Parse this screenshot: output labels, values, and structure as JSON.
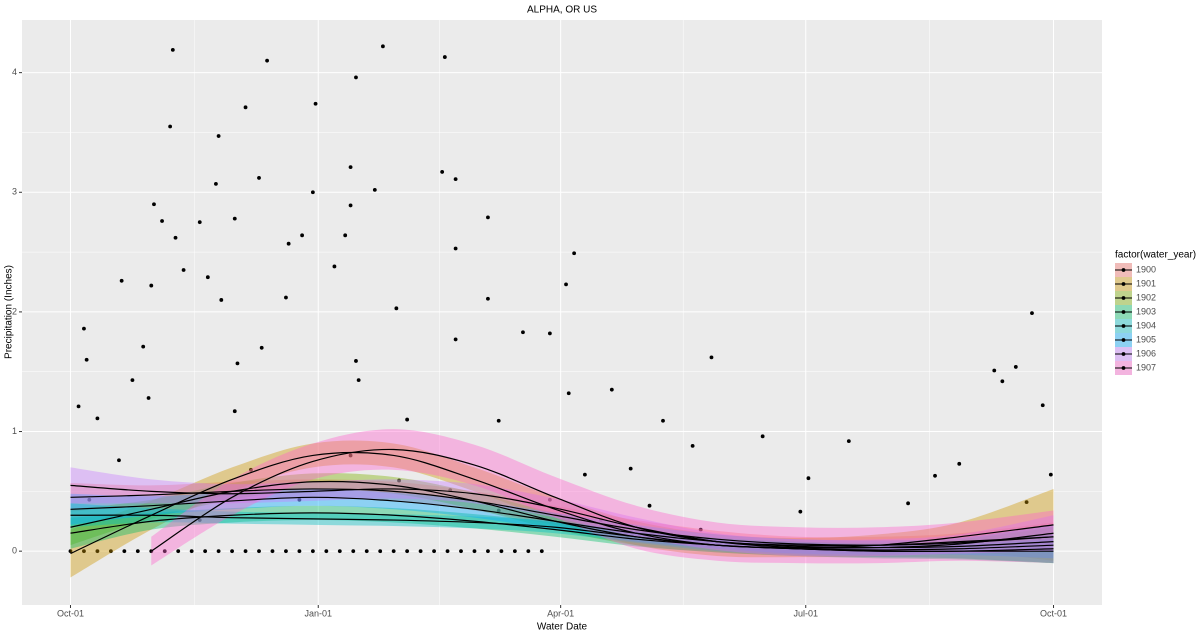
{
  "chart_data": {
    "type": "scatter",
    "title": "ALPHA, OR US",
    "x_label": "Water Date",
    "y_label": "Precipitation (Inches)",
    "legend_title": "factor(water_year)",
    "legend": "right",
    "grid": true,
    "point_color": "#000000",
    "xlim": [
      -18,
      383
    ],
    "xticks": [
      {
        "value": 0,
        "label": "Oct-01"
      },
      {
        "value": 92,
        "label": "Jan-01"
      },
      {
        "value": 182,
        "label": "Apr-01"
      },
      {
        "value": 273,
        "label": "Jul-01"
      },
      {
        "value": 365,
        "label": "Oct-01"
      }
    ],
    "ylim": [
      -0.45,
      4.44
    ],
    "yticks": [
      0,
      1,
      2,
      3,
      4
    ],
    "x": [
      38,
      116,
      73,
      139,
      106,
      91,
      65,
      37,
      55,
      104,
      70,
      138,
      143,
      54,
      90,
      113,
      31,
      104,
      34,
      61,
      48,
      155,
      102,
      39,
      86,
      187,
      143,
      81,
      42,
      184,
      19,
      98,
      30,
      51,
      80,
      155,
      121,
      5,
      56,
      357,
      27,
      6,
      238,
      106,
      351,
      343,
      143,
      168,
      178,
      71,
      62,
      23,
      201,
      346,
      107,
      29,
      3,
      185,
      361,
      10,
      61,
      125,
      289,
      330,
      159,
      220,
      257,
      231,
      208,
      191,
      274,
      321,
      311,
      355,
      271,
      364,
      360,
      18,
      48,
      85,
      122,
      159,
      197,
      234,
      7,
      67,
      104,
      141,
      178,
      215,
      0,
      5,
      10,
      15,
      20,
      25,
      30,
      35,
      40,
      45,
      50,
      55,
      60,
      65,
      70,
      75,
      80,
      85,
      90,
      95,
      100,
      105,
      110,
      115,
      120,
      125,
      130,
      135,
      140,
      145,
      150,
      155,
      160,
      165,
      170,
      175
    ],
    "values": [
      4.19,
      4.22,
      4.1,
      4.13,
      3.96,
      3.74,
      3.71,
      3.55,
      3.47,
      3.21,
      3.12,
      3.17,
      3.11,
      3.07,
      3.0,
      3.02,
      2.9,
      2.89,
      2.76,
      2.78,
      2.75,
      2.79,
      2.64,
      2.62,
      2.64,
      2.49,
      2.53,
      2.57,
      2.35,
      2.23,
      2.26,
      2.38,
      2.22,
      2.29,
      2.12,
      2.11,
      2.03,
      1.86,
      2.1,
      1.99,
      1.71,
      1.6,
      1.62,
      1.59,
      1.54,
      1.51,
      1.77,
      1.83,
      1.82,
      1.7,
      1.57,
      1.43,
      1.35,
      1.42,
      1.43,
      1.28,
      1.21,
      1.32,
      1.22,
      1.11,
      1.17,
      1.1,
      0.92,
      0.73,
      1.09,
      1.09,
      0.96,
      0.88,
      0.69,
      0.64,
      0.61,
      0.63,
      0.4,
      0.41,
      0.33,
      0.64,
      0.11,
      0.76,
      0.26,
      0.43,
      0.59,
      0.34,
      0.26,
      0.18,
      0.43,
      0.68,
      0.8,
      0.51,
      0.43,
      0.38,
      0,
      0,
      0,
      0,
      0,
      0,
      0,
      0,
      0,
      0,
      0,
      0,
      0,
      0,
      0,
      0,
      0,
      0,
      0,
      0,
      0,
      0,
      0,
      0,
      0,
      0,
      0,
      0,
      0,
      0,
      0,
      0,
      0,
      0,
      0,
      0
    ],
    "smooth_x": [
      0,
      30,
      60,
      90,
      120,
      150,
      180,
      210,
      240,
      270,
      300,
      330,
      365
    ],
    "series": [
      {
        "name": "1900",
        "color": "#F8766D",
        "values": [
          0.45,
          0.47,
          0.5,
          0.52,
          0.5,
          0.42,
          0.3,
          0.18,
          0.1,
          0.06,
          0.05,
          0.07,
          0.12
        ],
        "lower": [
          0.33,
          0.39,
          0.42,
          0.44,
          0.42,
          0.34,
          0.22,
          0.1,
          0.03,
          0,
          -0.02,
          -0.01,
          0
        ],
        "upper": [
          0.57,
          0.55,
          0.58,
          0.6,
          0.58,
          0.5,
          0.38,
          0.26,
          0.17,
          0.12,
          0.12,
          0.15,
          0.24
        ]
      },
      {
        "name": "1901",
        "color": "#CD9600",
        "values": [
          -0.02,
          0.3,
          0.6,
          0.8,
          0.8,
          0.6,
          0.35,
          0.15,
          0.05,
          0.03,
          0.05,
          0.12,
          0.22
        ],
        "lower": [
          -0.22,
          0.18,
          0.5,
          0.7,
          0.7,
          0.5,
          0.25,
          0.05,
          -0.04,
          -0.05,
          -0.04,
          0,
          -0.08
        ],
        "upper": [
          0.18,
          0.42,
          0.7,
          0.9,
          0.9,
          0.7,
          0.45,
          0.25,
          0.14,
          0.11,
          0.14,
          0.24,
          0.52
        ]
      },
      {
        "name": "1902",
        "color": "#7CAE00",
        "values": [
          0.2,
          0.35,
          0.5,
          0.58,
          0.55,
          0.42,
          0.25,
          0.12,
          0.05,
          0.02,
          0.01,
          0.02,
          0.05
        ],
        "lower": [
          0.05,
          0.27,
          0.43,
          0.51,
          0.48,
          0.35,
          0.18,
          0.05,
          -0.01,
          -0.04,
          -0.05,
          -0.06,
          -0.1
        ],
        "upper": [
          0.35,
          0.43,
          0.57,
          0.65,
          0.62,
          0.49,
          0.32,
          0.19,
          0.11,
          0.08,
          0.07,
          0.1,
          0.2
        ]
      },
      {
        "name": "1903",
        "color": "#00BE67",
        "values": [
          0.15,
          0.25,
          0.3,
          0.32,
          0.3,
          0.25,
          0.18,
          0.1,
          0.05,
          0.02,
          0,
          0,
          0.02
        ],
        "lower": [
          0.02,
          0.18,
          0.24,
          0.26,
          0.24,
          0.19,
          0.12,
          0.04,
          -0.01,
          -0.04,
          -0.06,
          -0.07,
          -0.1
        ],
        "upper": [
          0.28,
          0.32,
          0.36,
          0.38,
          0.36,
          0.31,
          0.24,
          0.16,
          0.11,
          0.08,
          0.06,
          0.07,
          0.14
        ]
      },
      {
        "name": "1904",
        "color": "#00BFC4",
        "values": [
          0.3,
          0.3,
          0.28,
          0.27,
          0.26,
          0.24,
          0.2,
          0.12,
          0.05,
          0.02,
          0,
          0,
          0
        ],
        "lower": [
          0.2,
          0.24,
          0.23,
          0.22,
          0.21,
          0.19,
          0.15,
          0.07,
          0,
          -0.03,
          -0.05,
          -0.06,
          -0.1
        ],
        "upper": [
          0.4,
          0.36,
          0.33,
          0.32,
          0.31,
          0.29,
          0.25,
          0.17,
          0.1,
          0.07,
          0.05,
          0.06,
          0.1
        ]
      },
      {
        "name": "1905",
        "color": "#00A9FF",
        "values": [
          0.35,
          0.38,
          0.42,
          0.45,
          0.42,
          0.35,
          0.25,
          0.15,
          0.08,
          0.04,
          0.03,
          0.04,
          0.08
        ],
        "lower": [
          0.22,
          0.3,
          0.35,
          0.38,
          0.35,
          0.28,
          0.18,
          0.08,
          0.02,
          -0.02,
          -0.03,
          -0.03,
          -0.06
        ],
        "upper": [
          0.48,
          0.46,
          0.49,
          0.52,
          0.49,
          0.42,
          0.32,
          0.22,
          0.14,
          0.1,
          0.09,
          0.11,
          0.22
        ]
      },
      {
        "name": "1906",
        "color": "#C77CFF",
        "values": [
          0.55,
          0.5,
          0.48,
          0.5,
          0.52,
          0.48,
          0.36,
          0.2,
          0.08,
          0.03,
          0.03,
          0.06,
          0.15
        ],
        "lower": [
          0.4,
          0.4,
          0.4,
          0.42,
          0.44,
          0.4,
          0.28,
          0.12,
          0.01,
          -0.04,
          -0.04,
          -0.02,
          0
        ],
        "upper": [
          0.7,
          0.6,
          0.56,
          0.58,
          0.6,
          0.56,
          0.44,
          0.28,
          0.15,
          0.1,
          0.1,
          0.14,
          0.3
        ]
      },
      {
        "name": "1907",
        "color": "#FF61CC",
        "values": [
          null,
          0,
          0.45,
          0.75,
          0.85,
          0.72,
          0.45,
          0.2,
          0.08,
          0.05,
          0.05,
          0.08,
          0.12
        ],
        "lower": [
          null,
          -0.12,
          0.3,
          0.6,
          0.68,
          0.55,
          0.28,
          0.02,
          -0.08,
          -0.1,
          -0.1,
          -0.08,
          -0.1
        ],
        "upper": [
          null,
          0.12,
          0.6,
          0.9,
          1.02,
          0.89,
          0.62,
          0.38,
          0.24,
          0.2,
          0.2,
          0.24,
          0.34
        ]
      }
    ]
  }
}
